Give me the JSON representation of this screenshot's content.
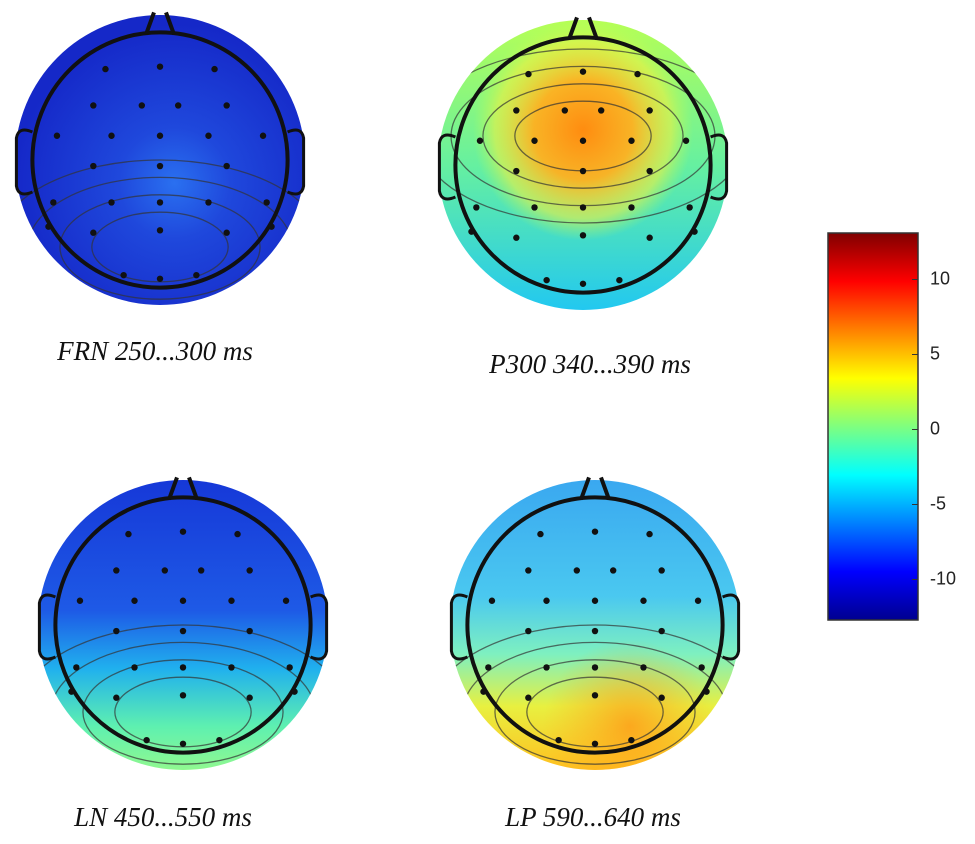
{
  "panels": [
    {
      "label": "FRN 250...300 ms"
    },
    {
      "label": "P300 340...390 ms"
    },
    {
      "label": "LN 450...550 ms"
    },
    {
      "label": "LP 590...640 ms"
    }
  ],
  "colorbar": {
    "lim": [
      -12.7,
      13.1
    ],
    "ticks": [
      10,
      5,
      0,
      -5,
      -10
    ]
  }
}
